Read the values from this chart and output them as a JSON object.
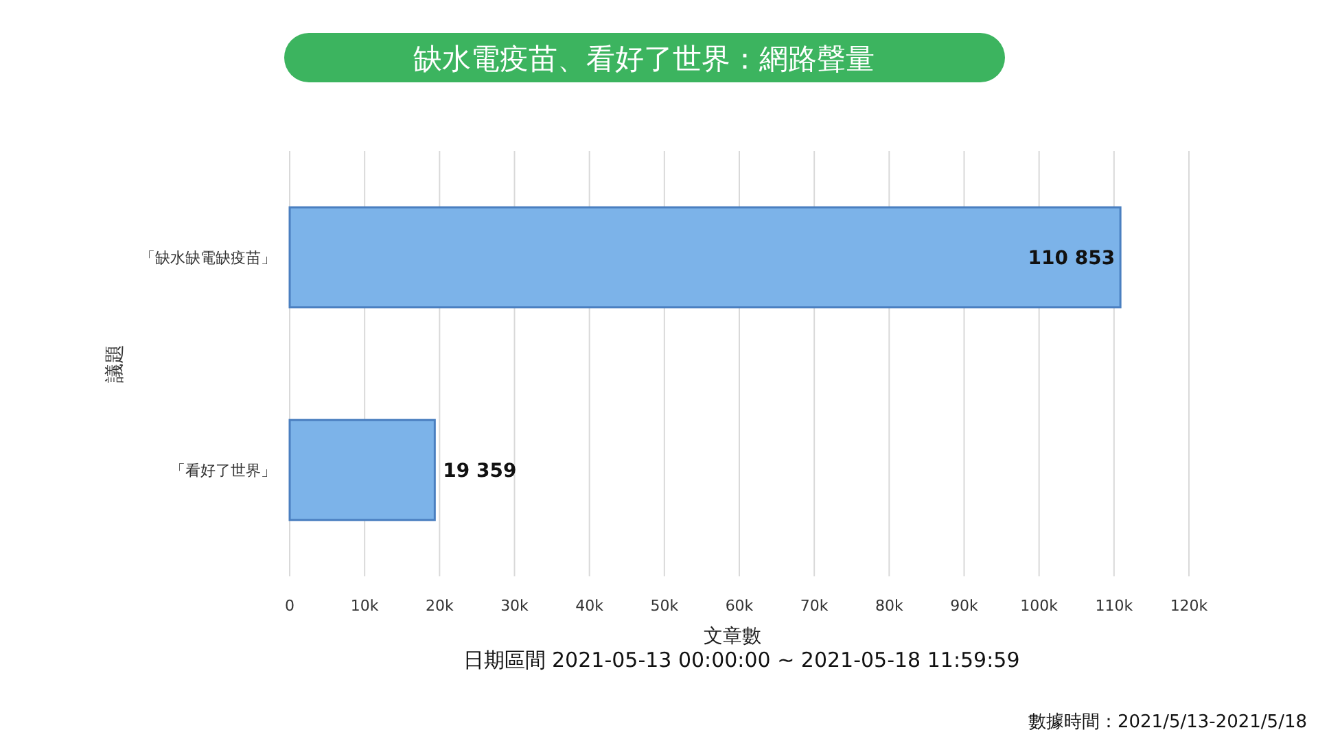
{
  "chart_data": {
    "type": "bar",
    "orientation": "horizontal",
    "title": "缺水電疫苗、看好了世界：網路聲量",
    "categories": [
      "「缺水缺電缺疫苗」",
      "「看好了世界」"
    ],
    "values": [
      110853,
      19359
    ],
    "color": "#7cb3e9",
    "value_labels": [
      "110 853",
      "19 359"
    ],
    "xlabel": "文章數",
    "ylabel": "議題",
    "xlim": [
      0,
      120000
    ],
    "xticks": [
      0,
      {
        "value": 10000,
        "label": "10k"
      },
      {
        "value": 20000,
        "label": "20k"
      },
      {
        "value": 30000,
        "label": "30k"
      },
      {
        "value": 40000,
        "label": "40k"
      },
      {
        "value": 50000,
        "label": "50k"
      },
      {
        "value": 60000,
        "label": "60k"
      },
      {
        "value": 70000,
        "label": "70k"
      },
      {
        "value": 80000,
        "label": "80k"
      },
      {
        "value": 90000,
        "label": "90k"
      },
      {
        "value": 100000,
        "label": "100k"
      },
      {
        "value": 110000,
        "label": "110k"
      },
      {
        "value": 120000,
        "label": "120k"
      }
    ],
    "grid": "x",
    "annotations": [
      "日期區間 2021-05-13 00:00:00 ~ 2021-05-18 11:59:59",
      "數據時間：2021/5/13-2021/5/18"
    ]
  }
}
